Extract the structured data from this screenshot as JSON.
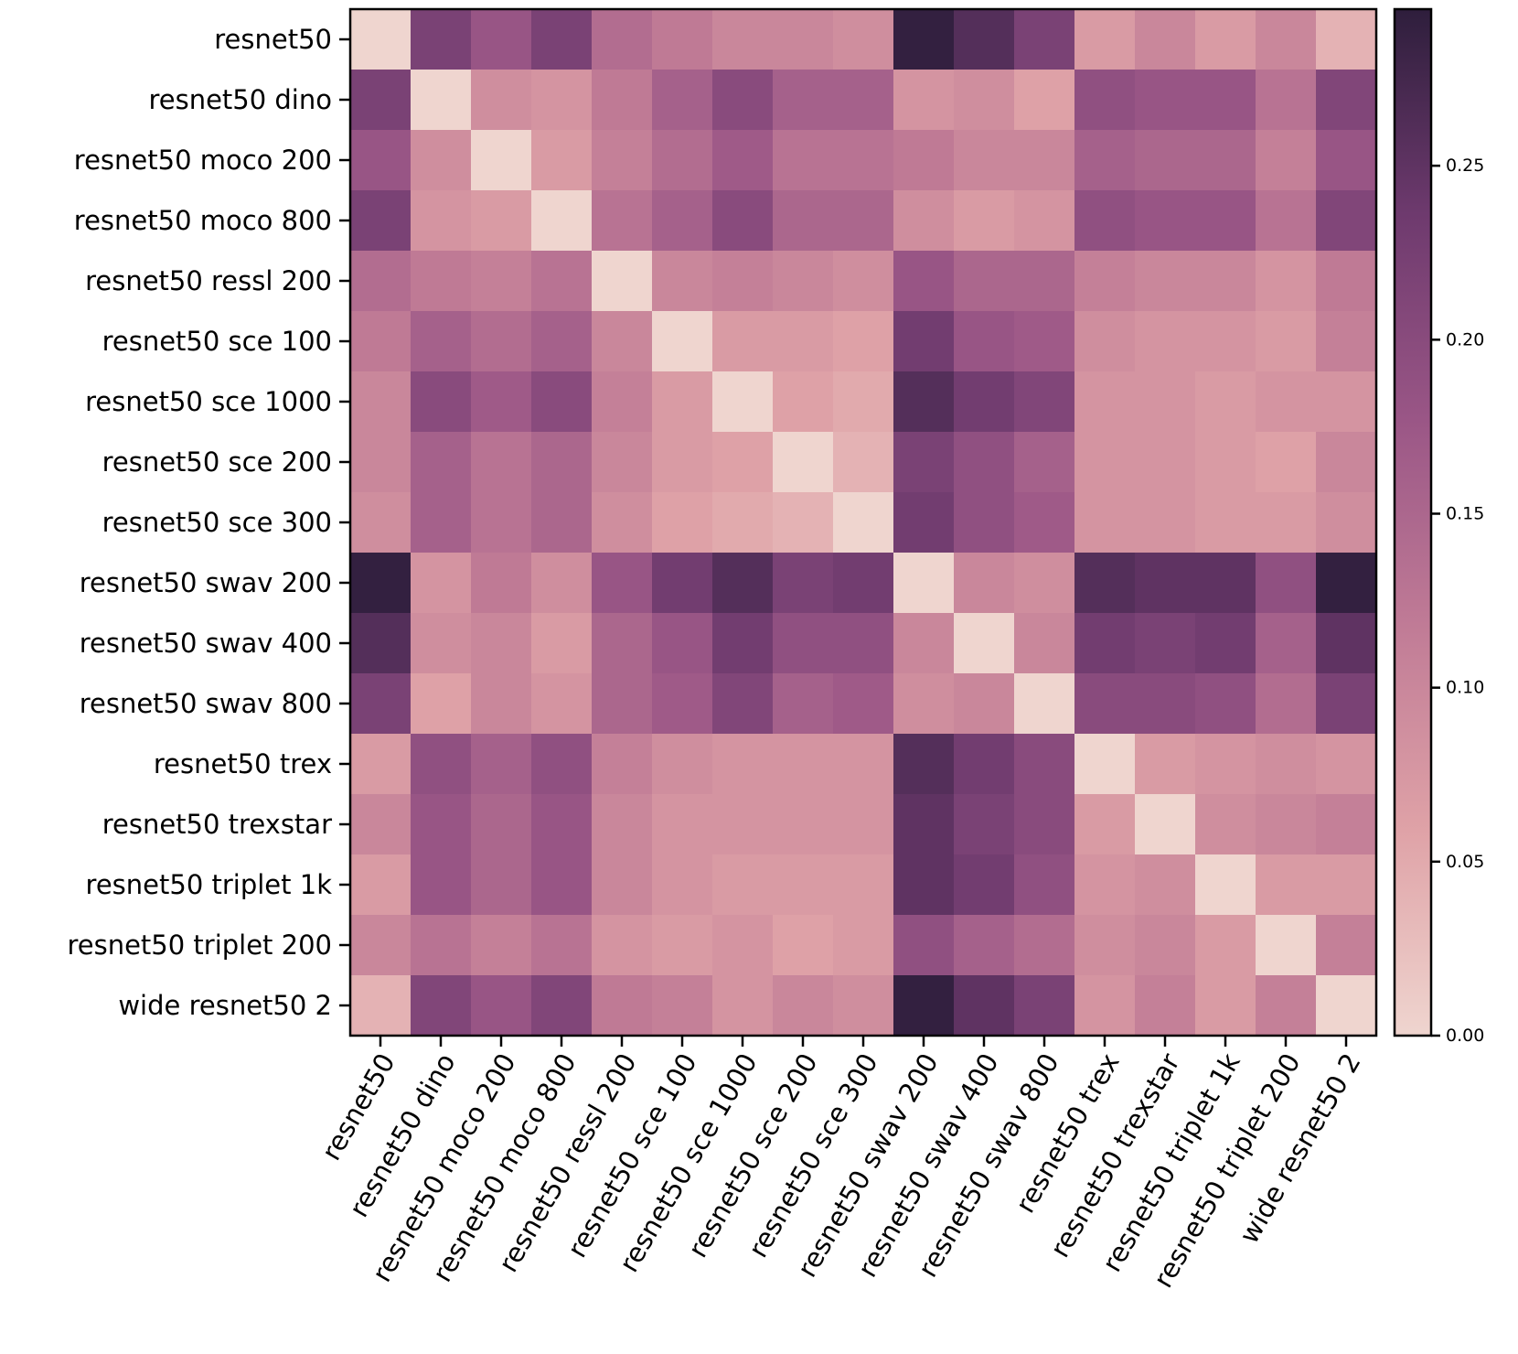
{
  "chart_data": {
    "type": "heatmap",
    "title": "",
    "xlabel": "",
    "ylabel": "",
    "labels": [
      "resnet50",
      "resnet50 dino",
      "resnet50 moco 200",
      "resnet50 moco 800",
      "resnet50 ressl 200",
      "resnet50 sce 100",
      "resnet50 sce 1000",
      "resnet50 sce 200",
      "resnet50 sce 300",
      "resnet50 swav 200",
      "resnet50 swav 400",
      "resnet50 swav 800",
      "resnet50 trex",
      "resnet50 trexstar",
      "resnet50 triplet 1k",
      "resnet50 triplet 200",
      "wide resnet50 2"
    ],
    "values": [
      [
        0.0,
        0.22,
        0.18,
        0.22,
        0.14,
        0.12,
        0.1,
        0.1,
        0.09,
        0.29,
        0.26,
        0.22,
        0.07,
        0.1,
        0.07,
        0.1,
        0.04
      ],
      [
        0.22,
        0.0,
        0.09,
        0.08,
        0.12,
        0.16,
        0.2,
        0.16,
        0.16,
        0.08,
        0.09,
        0.06,
        0.19,
        0.18,
        0.18,
        0.13,
        0.21
      ],
      [
        0.18,
        0.09,
        0.0,
        0.07,
        0.11,
        0.14,
        0.17,
        0.13,
        0.13,
        0.12,
        0.1,
        0.1,
        0.16,
        0.15,
        0.15,
        0.11,
        0.18
      ],
      [
        0.22,
        0.08,
        0.07,
        0.0,
        0.13,
        0.16,
        0.2,
        0.15,
        0.15,
        0.09,
        0.07,
        0.08,
        0.19,
        0.18,
        0.18,
        0.13,
        0.21
      ],
      [
        0.14,
        0.12,
        0.11,
        0.13,
        0.0,
        0.1,
        0.11,
        0.1,
        0.09,
        0.18,
        0.15,
        0.15,
        0.11,
        0.1,
        0.1,
        0.08,
        0.12
      ],
      [
        0.12,
        0.16,
        0.14,
        0.16,
        0.1,
        0.0,
        0.07,
        0.07,
        0.06,
        0.23,
        0.18,
        0.17,
        0.09,
        0.08,
        0.08,
        0.07,
        0.11
      ],
      [
        0.1,
        0.2,
        0.17,
        0.2,
        0.11,
        0.07,
        0.0,
        0.06,
        0.05,
        0.26,
        0.23,
        0.21,
        0.08,
        0.08,
        0.07,
        0.08,
        0.08
      ],
      [
        0.1,
        0.16,
        0.13,
        0.15,
        0.1,
        0.07,
        0.06,
        0.0,
        0.04,
        0.22,
        0.19,
        0.16,
        0.08,
        0.08,
        0.07,
        0.06,
        0.1
      ],
      [
        0.09,
        0.16,
        0.13,
        0.15,
        0.09,
        0.06,
        0.05,
        0.04,
        0.0,
        0.23,
        0.19,
        0.17,
        0.08,
        0.08,
        0.07,
        0.07,
        0.09
      ],
      [
        0.29,
        0.08,
        0.12,
        0.09,
        0.18,
        0.23,
        0.26,
        0.22,
        0.23,
        0.0,
        0.1,
        0.09,
        0.26,
        0.25,
        0.25,
        0.19,
        0.29
      ],
      [
        0.26,
        0.09,
        0.1,
        0.07,
        0.15,
        0.18,
        0.23,
        0.19,
        0.19,
        0.1,
        0.0,
        0.1,
        0.23,
        0.22,
        0.23,
        0.16,
        0.25
      ],
      [
        0.22,
        0.06,
        0.1,
        0.08,
        0.15,
        0.17,
        0.21,
        0.16,
        0.17,
        0.09,
        0.1,
        0.0,
        0.2,
        0.2,
        0.19,
        0.14,
        0.22
      ],
      [
        0.07,
        0.19,
        0.16,
        0.19,
        0.11,
        0.09,
        0.08,
        0.08,
        0.08,
        0.26,
        0.23,
        0.2,
        0.0,
        0.07,
        0.08,
        0.09,
        0.08
      ],
      [
        0.1,
        0.18,
        0.15,
        0.18,
        0.1,
        0.08,
        0.08,
        0.08,
        0.08,
        0.25,
        0.22,
        0.2,
        0.07,
        0.0,
        0.09,
        0.1,
        0.11
      ],
      [
        0.07,
        0.18,
        0.15,
        0.18,
        0.1,
        0.08,
        0.07,
        0.07,
        0.07,
        0.25,
        0.23,
        0.19,
        0.08,
        0.09,
        0.0,
        0.07,
        0.07
      ],
      [
        0.1,
        0.13,
        0.11,
        0.13,
        0.08,
        0.07,
        0.08,
        0.06,
        0.07,
        0.19,
        0.16,
        0.14,
        0.09,
        0.1,
        0.07,
        0.0,
        0.11
      ],
      [
        0.04,
        0.21,
        0.18,
        0.21,
        0.12,
        0.11,
        0.08,
        0.1,
        0.09,
        0.29,
        0.25,
        0.22,
        0.08,
        0.11,
        0.07,
        0.11,
        0.0
      ]
    ],
    "colorbar": {
      "range": [
        0.0,
        0.295
      ],
      "ticks": [
        "0.00",
        "0.05",
        "0.10",
        "0.15",
        "0.20",
        "0.25"
      ],
      "tick_values": [
        0.0,
        0.05,
        0.1,
        0.15,
        0.2,
        0.25
      ],
      "colormap_stops": [
        "#efd5cf",
        "#dfa2a7",
        "#c07b96",
        "#9a5686",
        "#6e3a6e",
        "#2e1e3c"
      ]
    },
    "grid": false,
    "legend": "colorbar-right"
  }
}
